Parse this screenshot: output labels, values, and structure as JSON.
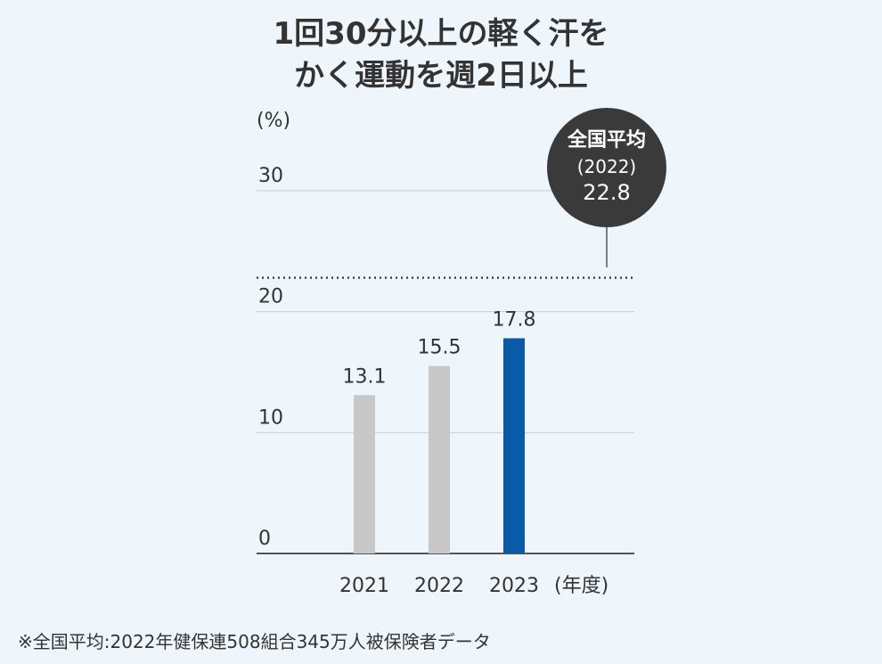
{
  "chart_data": {
    "type": "bar",
    "title": "1回30分以上の軽く汗をかく運動を週2日以上",
    "title_lines": [
      "1回30分以上の軽く汗を",
      "かく運動を週2日以上"
    ],
    "ylabel": "(%)",
    "xlabel": "(年度)",
    "categories": [
      "2021",
      "2022",
      "2023"
    ],
    "values": [
      13.1,
      15.5,
      17.8
    ],
    "value_labels": [
      "13.1",
      "15.5",
      "17.8"
    ],
    "ylim": [
      0,
      30
    ],
    "yticks": [
      0,
      10,
      20,
      30
    ],
    "bar_colors": [
      "#c8c8c8",
      "#c8c8c8",
      "#0a5aa8"
    ],
    "grid": true,
    "reference_line": {
      "value": 22.8,
      "style": "dotted",
      "label_lines": [
        "全国平均",
        "(2022)",
        "22.8"
      ]
    }
  },
  "footnote": "※全国平均:2022年健保連508組合345万人被保険者データ",
  "colors": {
    "background": "#eef5fb",
    "grid": "#c9ced3",
    "axis": "#555555",
    "text": "#333333",
    "highlight_bar": "#0a5aa8",
    "muted_bar": "#c8c8c8",
    "badge": "#3a3a3a"
  }
}
